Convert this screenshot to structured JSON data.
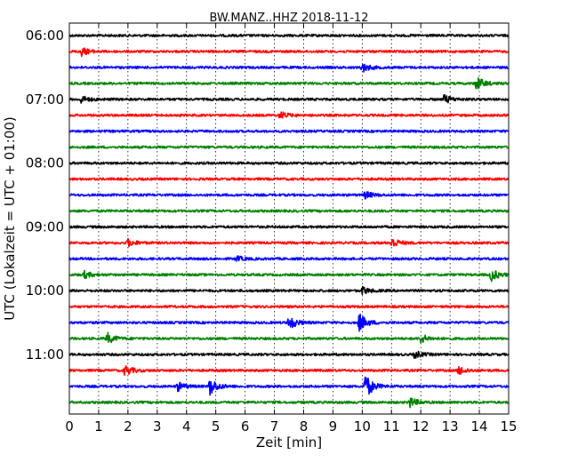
{
  "chart_data": {
    "type": "line",
    "title": "BW.MANZ..HHZ 2018-11-12",
    "xlabel": "Zeit  [min]",
    "ylabel": "UTC (Lokalzeit = UTC + 01:00)",
    "xlim": [
      0,
      15
    ],
    "x_ticks": [
      "0",
      "1",
      "2",
      "3",
      "4",
      "5",
      "6",
      "7",
      "8",
      "9",
      "10",
      "11",
      "12",
      "13",
      "14",
      "15"
    ],
    "y_ticks": [
      "06:00",
      "07:00",
      "08:00",
      "09:00",
      "10:00",
      "11:00"
    ],
    "grid": "vertical-dotted",
    "trace_colors": [
      "#000000",
      "#ff0000",
      "#0000ff",
      "#008000"
    ],
    "traces": [
      {
        "start": "06:00",
        "events": []
      },
      {
        "start": "06:15",
        "events": [
          {
            "t": 0.4,
            "amp": 5
          }
        ]
      },
      {
        "start": "06:30",
        "events": [
          {
            "t": 10.0,
            "amp": 5
          }
        ]
      },
      {
        "start": "06:45",
        "events": [
          {
            "t": 13.9,
            "amp": 8
          }
        ]
      },
      {
        "start": "07:00",
        "events": [
          {
            "t": 0.4,
            "amp": 4
          },
          {
            "t": 12.8,
            "amp": 5
          }
        ]
      },
      {
        "start": "07:15",
        "events": [
          {
            "t": 7.2,
            "amp": 4
          }
        ]
      },
      {
        "start": "07:30",
        "events": []
      },
      {
        "start": "07:45",
        "events": []
      },
      {
        "start": "08:00",
        "events": []
      },
      {
        "start": "08:15",
        "events": []
      },
      {
        "start": "08:30",
        "events": [
          {
            "t": 10.1,
            "amp": 4
          }
        ]
      },
      {
        "start": "08:45",
        "events": []
      },
      {
        "start": "09:00",
        "events": []
      },
      {
        "start": "09:15",
        "events": [
          {
            "t": 2.0,
            "amp": 4
          },
          {
            "t": 11.0,
            "amp": 6
          }
        ]
      },
      {
        "start": "09:30",
        "events": [
          {
            "t": 5.7,
            "amp": 3
          }
        ]
      },
      {
        "start": "09:45",
        "events": [
          {
            "t": 0.5,
            "amp": 4
          },
          {
            "t": 14.4,
            "amp": 7
          }
        ]
      },
      {
        "start": "10:00",
        "events": [
          {
            "t": 10.0,
            "amp": 4
          }
        ]
      },
      {
        "start": "10:15",
        "events": []
      },
      {
        "start": "10:30",
        "events": [
          {
            "t": 7.5,
            "amp": 8
          },
          {
            "t": 9.9,
            "amp": 10
          }
        ]
      },
      {
        "start": "10:45",
        "events": [
          {
            "t": 1.3,
            "amp": 6
          },
          {
            "t": 12.0,
            "amp": 5
          }
        ]
      },
      {
        "start": "11:00",
        "events": [
          {
            "t": 11.8,
            "amp": 4
          }
        ]
      },
      {
        "start": "11:15",
        "events": [
          {
            "t": 1.9,
            "amp": 6
          },
          {
            "t": 13.3,
            "amp": 5
          }
        ]
      },
      {
        "start": "11:30",
        "events": [
          {
            "t": 3.7,
            "amp": 5
          },
          {
            "t": 4.8,
            "amp": 10
          },
          {
            "t": 10.1,
            "amp": 14
          }
        ]
      },
      {
        "start": "11:45",
        "events": [
          {
            "t": 11.6,
            "amp": 6
          }
        ]
      }
    ]
  }
}
